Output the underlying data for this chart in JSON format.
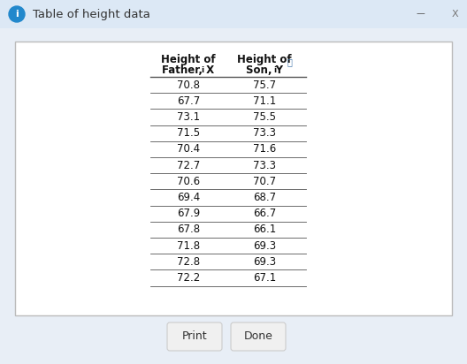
{
  "title": "Table of height data",
  "fathers": [
    70.8,
    67.7,
    73.1,
    71.5,
    70.4,
    72.7,
    70.6,
    69.4,
    67.9,
    67.8,
    71.8,
    72.8,
    72.2
  ],
  "sons": [
    75.7,
    71.1,
    75.5,
    73.3,
    71.6,
    73.3,
    70.7,
    68.7,
    66.7,
    66.1,
    69.3,
    69.3,
    67.1
  ],
  "fig_bg": "#e8eef6",
  "title_bar_bg": "#dce8f5",
  "table_bg": "#ffffff",
  "table_border": "#bbbbbb",
  "text_color": "#111111",
  "header_color": "#111111",
  "button_bg": "#f0f0f0",
  "button_border": "#cccccc",
  "info_blue": "#2288cc",
  "line_color": "#555555",
  "print_btn": "Print",
  "done_btn": "Done",
  "figw": 5.28,
  "figh": 4.12,
  "dpi": 100
}
